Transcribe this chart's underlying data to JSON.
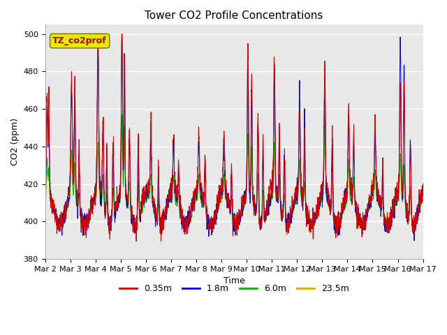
{
  "title": "Tower CO2 Profile Concentrations",
  "xlabel": "Time",
  "ylabel": "CO2 (ppm)",
  "ylim": [
    380,
    505
  ],
  "xlim": [
    0,
    15
  ],
  "xtick_labels": [
    "Mar 2",
    "Mar 3",
    "Mar 4",
    "Mar 5",
    "Mar 6",
    "Mar 7",
    "Mar 8",
    "Mar 9",
    "Mar 10",
    "Mar 11",
    "Mar 12",
    "Mar 13",
    "Mar 14",
    "Mar 15",
    "Mar 16",
    "Mar 17"
  ],
  "annotation_text": "TZ_co2prof",
  "annotation_facecolor": "#e8e800",
  "annotation_edgecolor": "#888800",
  "series_colors": [
    "#cc0000",
    "#0000cc",
    "#00bb00",
    "#ddaa00"
  ],
  "series_labels": [
    "0.35m",
    "1.8m",
    "6.0m",
    "23.5m"
  ],
  "background_color": "#e8e8e8",
  "title_fontsize": 11,
  "axis_fontsize": 9,
  "tick_fontsize": 8,
  "legend_fontsize": 9,
  "n_points": 2160,
  "days": 15
}
